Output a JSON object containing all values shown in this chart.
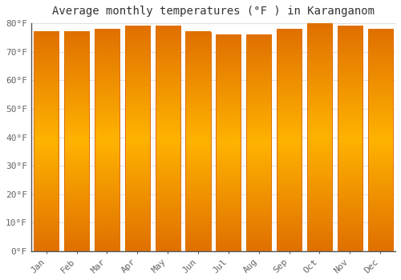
{
  "title": "Average monthly temperatures (°F ) in Karanganom",
  "months": [
    "Jan",
    "Feb",
    "Mar",
    "Apr",
    "May",
    "Jun",
    "Jul",
    "Aug",
    "Sep",
    "Oct",
    "Nov",
    "Dec"
  ],
  "values": [
    77,
    77,
    78,
    79,
    79,
    77,
    76,
    76,
    78,
    80,
    79,
    78
  ],
  "bar_color_center": "#FFB300",
  "bar_color_edge": "#E07000",
  "background_color": "#FFFFFF",
  "plot_bg_color": "#FFFFFF",
  "ylim": [
    0,
    80
  ],
  "yticks": [
    0,
    10,
    20,
    30,
    40,
    50,
    60,
    70,
    80
  ],
  "title_fontsize": 10,
  "tick_fontsize": 8,
  "grid_color": "#E0E0E0",
  "bar_width": 0.82,
  "spine_color": "#555555"
}
